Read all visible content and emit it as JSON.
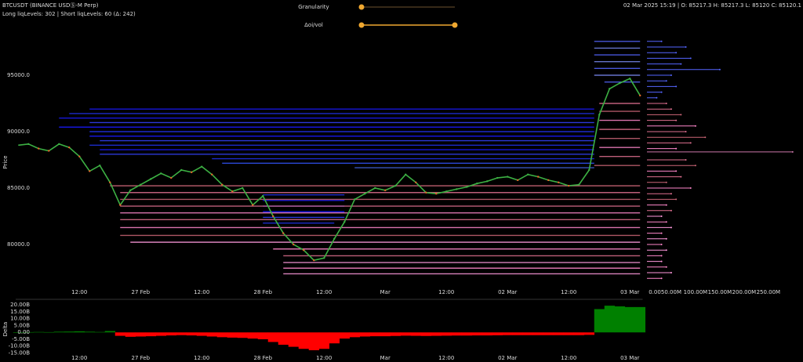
{
  "header": {
    "symbol": "BTCUSDT (BINANCE USDⓈ-M Perp)",
    "levels_info": "Long liqLevels: 302 | Short liqLevels: 60 (Δ: 242)",
    "ohlc": "02 Mar 2025 15:19 | O: 85217.3 H: 85217.3 L: 85120 C: 85120.1"
  },
  "controls": {
    "granularity": "Granularity",
    "oi_vol": "Δoi/vol"
  },
  "chart_data": [
    {
      "type": "line",
      "y_label": "Price",
      "x": [
        0,
        2,
        4,
        6,
        8,
        10,
        12,
        14,
        16,
        18,
        20,
        22,
        24,
        26,
        28,
        30,
        32,
        34,
        36,
        38,
        40,
        42,
        44,
        46,
        48,
        50,
        52,
        54,
        56,
        58,
        60,
        62,
        64,
        66,
        68,
        70,
        72,
        74,
        76,
        78,
        80,
        82,
        84,
        86,
        88,
        90,
        92,
        94,
        96,
        98,
        100,
        102,
        104,
        106,
        108,
        110,
        112,
        114,
        116,
        118,
        120,
        122
      ],
      "series": [
        {
          "color": "#3cb043",
          "values": [
            88800,
            88900,
            88500,
            88300,
            88900,
            88600,
            87800,
            86500,
            87000,
            85500,
            83500,
            84800,
            85300,
            85800,
            86300,
            85900,
            86600,
            86400,
            86900,
            86200,
            85300,
            84700,
            85000,
            83500,
            84300,
            82500,
            81000,
            80000,
            79500,
            78600,
            78800,
            80500,
            82000,
            84000,
            84500,
            85000,
            84800,
            85200,
            86200,
            85500,
            84600,
            84500,
            84700,
            84900,
            85100,
            85400,
            85600,
            85900,
            86000,
            85700,
            86200,
            86000,
            85700,
            85500,
            85200,
            85300,
            86600,
            91500,
            93800,
            94300,
            94700,
            93200
          ]
        }
      ],
      "liq_levels": [
        {
          "price": 92000,
          "start": 14,
          "end": 113,
          "color": "#1a1aff"
        },
        {
          "price": 91600,
          "start": 10,
          "end": 113,
          "color": "#2233ee"
        },
        {
          "price": 91200,
          "start": 8,
          "end": 113,
          "color": "#1a1aff"
        },
        {
          "price": 90800,
          "start": 14,
          "end": 113,
          "color": "#3344ff"
        },
        {
          "price": 90400,
          "start": 8,
          "end": 113,
          "color": "#1a1aff"
        },
        {
          "price": 90000,
          "start": 14,
          "end": 113,
          "color": "#2233ee"
        },
        {
          "price": 89600,
          "start": 14,
          "end": 113,
          "color": "#1a1aff"
        },
        {
          "price": 89200,
          "start": 16,
          "end": 113,
          "color": "#3344ff"
        },
        {
          "price": 88800,
          "start": 14,
          "end": 113,
          "color": "#2233ee"
        },
        {
          "price": 88400,
          "start": 16,
          "end": 113,
          "color": "#1a1aff"
        },
        {
          "price": 88000,
          "start": 16,
          "end": 113,
          "color": "#3344ff"
        },
        {
          "price": 87600,
          "start": 38,
          "end": 113,
          "color": "#2233ee"
        },
        {
          "price": 87200,
          "start": 40,
          "end": 113,
          "color": "#3355ff"
        },
        {
          "price": 86800,
          "start": 66,
          "end": 113,
          "color": "#4466dd"
        },
        {
          "price": 98000,
          "start": 113,
          "end": 122,
          "color": "#5566ff"
        },
        {
          "price": 97400,
          "start": 113,
          "end": 122,
          "color": "#7788ee"
        },
        {
          "price": 96800,
          "start": 113,
          "end": 122,
          "color": "#5566ff"
        },
        {
          "price": 96200,
          "start": 113,
          "end": 122,
          "color": "#7788ee"
        },
        {
          "price": 95600,
          "start": 113,
          "end": 122,
          "color": "#5566ff"
        },
        {
          "price": 95000,
          "start": 113,
          "end": 122,
          "color": "#7788ee"
        },
        {
          "price": 94400,
          "start": 115,
          "end": 122,
          "color": "#5566ff"
        },
        {
          "price": 84400,
          "start": 48,
          "end": 64,
          "color": "#2233ee"
        },
        {
          "price": 83900,
          "start": 48,
          "end": 64,
          "color": "#1a1aff"
        },
        {
          "price": 83400,
          "start": 48,
          "end": 64,
          "color": "#2233ee"
        },
        {
          "price": 82900,
          "start": 48,
          "end": 64,
          "color": "#1a1aff"
        },
        {
          "price": 82400,
          "start": 48,
          "end": 64,
          "color": "#3344ff"
        },
        {
          "price": 81900,
          "start": 48,
          "end": 62,
          "color": "#2233ee"
        },
        {
          "price": 85200,
          "start": 18,
          "end": 122,
          "color": "#cc6677"
        },
        {
          "price": 84600,
          "start": 20,
          "end": 122,
          "color": "#e07090"
        },
        {
          "price": 84000,
          "start": 20,
          "end": 122,
          "color": "#cc6677"
        },
        {
          "price": 83400,
          "start": 20,
          "end": 122,
          "color": "#e07090"
        },
        {
          "price": 82800,
          "start": 20,
          "end": 122,
          "color": "#ff88cc"
        },
        {
          "price": 82200,
          "start": 20,
          "end": 122,
          "color": "#e07090"
        },
        {
          "price": 81500,
          "start": 20,
          "end": 122,
          "color": "#ff88cc"
        },
        {
          "price": 80800,
          "start": 20,
          "end": 122,
          "color": "#cc6677"
        },
        {
          "price": 80200,
          "start": 22,
          "end": 122,
          "color": "#ff99dd"
        },
        {
          "price": 79600,
          "start": 50,
          "end": 122,
          "color": "#ff88cc"
        },
        {
          "price": 79000,
          "start": 52,
          "end": 122,
          "color": "#e07090"
        },
        {
          "price": 78400,
          "start": 52,
          "end": 122,
          "color": "#ff99dd"
        },
        {
          "price": 77900,
          "start": 52,
          "end": 122,
          "color": "#ff88cc"
        },
        {
          "price": 77400,
          "start": 52,
          "end": 122,
          "color": "#ff99dd"
        },
        {
          "price": 92500,
          "start": 114,
          "end": 122,
          "color": "#e07090"
        },
        {
          "price": 91800,
          "start": 114,
          "end": 122,
          "color": "#cc6677"
        },
        {
          "price": 91000,
          "start": 114,
          "end": 122,
          "color": "#ff88cc"
        },
        {
          "price": 90200,
          "start": 114,
          "end": 122,
          "color": "#e07090"
        },
        {
          "price": 89400,
          "start": 114,
          "end": 122,
          "color": "#cc6677"
        },
        {
          "price": 88600,
          "start": 114,
          "end": 122,
          "color": "#ff88cc"
        },
        {
          "price": 87800,
          "start": 114,
          "end": 122,
          "color": "#e07090"
        },
        {
          "price": 87000,
          "start": 113,
          "end": 122,
          "color": "#cc6677"
        }
      ],
      "xlim": [
        -0.5,
        122.5
      ],
      "ylim": [
        76000,
        98500
      ],
      "xticks": [
        {
          "value": 12,
          "label": "12:00"
        },
        {
          "value": 24,
          "label": "27 Feb"
        },
        {
          "value": 36,
          "label": "12:00"
        },
        {
          "value": 48,
          "label": "28 Feb"
        },
        {
          "value": 60,
          "label": "12:00"
        },
        {
          "value": 72,
          "label": "Mar"
        },
        {
          "value": 84,
          "label": "12:00"
        },
        {
          "value": 96,
          "label": "02 Mar"
        },
        {
          "value": 108,
          "label": "12:00"
        },
        {
          "value": 120,
          "label": "03 Mar"
        }
      ],
      "yticks": [
        {
          "value": 80000,
          "label": "80000.0"
        },
        {
          "value": 85000,
          "label": "85000.0"
        },
        {
          "value": 90000,
          "label": "90000.0"
        },
        {
          "value": 95000,
          "label": "95000.0"
        }
      ]
    },
    {
      "type": "hbar",
      "prices": [
        98000,
        97500,
        97000,
        96500,
        96000,
        95500,
        95000,
        94500,
        94000,
        93500,
        93000,
        92500,
        92000,
        91500,
        91000,
        90500,
        90000,
        89500,
        89000,
        88500,
        88200,
        87500,
        87000,
        86500,
        86000,
        85500,
        85000,
        84500,
        84000,
        83500,
        83000,
        82500,
        82000,
        81500,
        81000,
        80500,
        80000,
        79500,
        79000,
        78500,
        78000,
        77500,
        77000
      ],
      "values": [
        30,
        80,
        60,
        90,
        70,
        150,
        50,
        40,
        60,
        30,
        20,
        40,
        50,
        70,
        60,
        100,
        80,
        120,
        90,
        60,
        300,
        80,
        100,
        60,
        70,
        40,
        90,
        50,
        60,
        40,
        50,
        30,
        40,
        50,
        30,
        40,
        30,
        40,
        30,
        30,
        40,
        50,
        30
      ],
      "colors": [
        "#5566ff",
        "#5566ff",
        "#5566ff",
        "#5566ff",
        "#5566ff",
        "#5566ff",
        "#5566ff",
        "#5566ff",
        "#5566ff",
        "#5566ff",
        "#5566ff",
        "#e07090",
        "#e07090",
        "#cc6677",
        "#e07090",
        "#ff88cc",
        "#e07090",
        "#cc6677",
        "#e07090",
        "#ff88cc",
        "#cc77aa",
        "#e07090",
        "#cc6677",
        "#ff88cc",
        "#e07090",
        "#cc6677",
        "#ff88cc",
        "#e07090",
        "#cc6677",
        "#ff88cc",
        "#e07090",
        "#ff99dd",
        "#ff88cc",
        "#ff99dd",
        "#ff88cc",
        "#ff99dd",
        "#ff88cc",
        "#ff99dd",
        "#ff88cc",
        "#ff99dd",
        "#ff88cc",
        "#ff99dd",
        "#ff88cc"
      ],
      "xlim": [
        0,
        310
      ],
      "ylim": [
        76000,
        98500
      ],
      "xticks": [
        {
          "value": 0,
          "label": "0.00"
        },
        {
          "value": 50,
          "label": "50.00M"
        },
        {
          "value": 100,
          "label": "100.00M"
        },
        {
          "value": 150,
          "label": "150.00M"
        },
        {
          "value": 200,
          "label": "200.00M"
        },
        {
          "value": 250,
          "label": "250.00M"
        }
      ]
    },
    {
      "type": "bar",
      "y_label": "Delta",
      "x": [
        0,
        2,
        4,
        6,
        8,
        10,
        12,
        14,
        16,
        18,
        20,
        22,
        24,
        26,
        28,
        30,
        32,
        34,
        36,
        38,
        40,
        42,
        44,
        46,
        48,
        50,
        52,
        54,
        56,
        58,
        60,
        62,
        64,
        66,
        68,
        70,
        72,
        74,
        76,
        78,
        80,
        82,
        84,
        86,
        88,
        90,
        92,
        94,
        96,
        98,
        100,
        102,
        104,
        106,
        108,
        110,
        112,
        114,
        116,
        118,
        120,
        122
      ],
      "values": [
        0,
        0.2,
        0.3,
        0.2,
        0.5,
        0.6,
        0.8,
        0.5,
        0.3,
        1.0,
        -2.5,
        -3.2,
        -3,
        -2.8,
        -2.5,
        -2.2,
        -2,
        -2.2,
        -2.5,
        -3,
        -3.5,
        -3.8,
        -4,
        -4.5,
        -5,
        -7,
        -9,
        -10.5,
        -12,
        -13,
        -12,
        -8,
        -4.5,
        -3.5,
        -3,
        -2.8,
        -2.8,
        -2.6,
        -2.4,
        -2.5,
        -2.6,
        -2.5,
        -2.4,
        -2.3,
        -2.3,
        -2.2,
        -2.2,
        -2.1,
        -2,
        -2,
        -2,
        -2,
        -2,
        -2,
        -2,
        -2,
        -1.8,
        17,
        19.5,
        19,
        18.5,
        18.5
      ],
      "positive_color": "#008000",
      "negative_color": "#ff0000",
      "xlim": [
        -0.5,
        122.5
      ],
      "ylim": [
        -18,
        23
      ],
      "xticks": [
        {
          "value": 12,
          "label": "12:00"
        },
        {
          "value": 24,
          "label": "27 Feb"
        },
        {
          "value": 36,
          "label": "12:00"
        },
        {
          "value": 48,
          "label": "28 Feb"
        },
        {
          "value": 60,
          "label": "12:00"
        },
        {
          "value": 72,
          "label": "Mar"
        },
        {
          "value": 84,
          "label": "12:00"
        },
        {
          "value": 96,
          "label": "02 Mar"
        },
        {
          "value": 108,
          "label": "12:00"
        },
        {
          "value": 120,
          "label": "03 Mar"
        }
      ],
      "yticks": [
        {
          "value": -15,
          "label": "-15.00B"
        },
        {
          "value": -10,
          "label": "-10.00B"
        },
        {
          "value": -5,
          "label": "-5.00B"
        },
        {
          "value": 0,
          "label": "0.00"
        },
        {
          "value": 5,
          "label": "5.00B"
        },
        {
          "value": 10,
          "label": "10.00B"
        },
        {
          "value": 15,
          "label": "15.00B"
        },
        {
          "value": 20,
          "label": "20.00B"
        }
      ]
    }
  ]
}
